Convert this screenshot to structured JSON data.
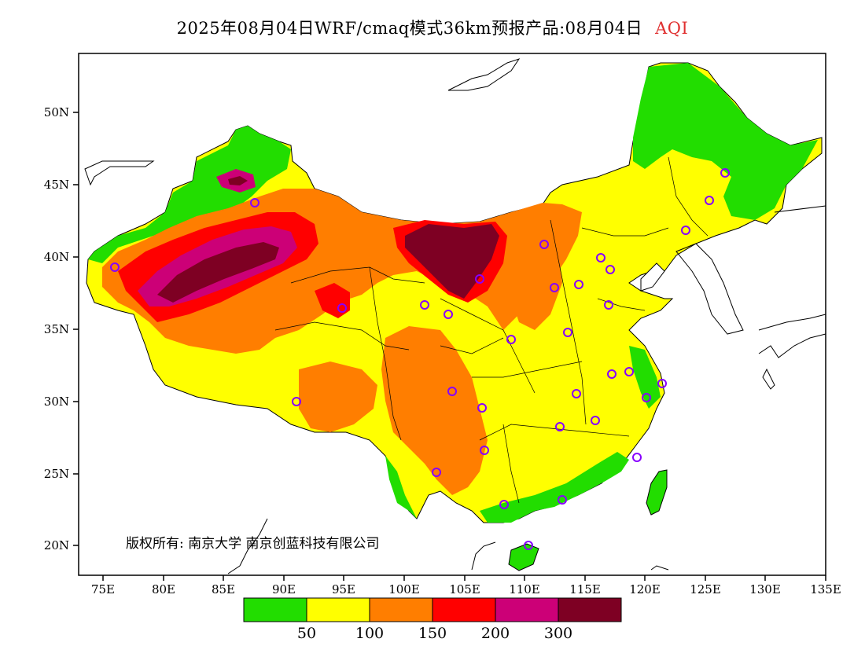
{
  "title": {
    "main": "2025年08月04日WRF/cmaq模式36km预报产品:08月04日",
    "product": "AQI"
  },
  "axes": {
    "lon_ticks": [
      "75E",
      "80E",
      "85E",
      "90E",
      "95E",
      "100E",
      "105E",
      "110E",
      "115E",
      "120E",
      "125E",
      "130E",
      "135E"
    ],
    "lat_ticks": [
      "20N",
      "25N",
      "30N",
      "35N",
      "40N",
      "45N",
      "50N"
    ],
    "lon_range": [
      73,
      135
    ],
    "lat_range": [
      18,
      54
    ]
  },
  "colorbar": {
    "colors": [
      "#22dd00",
      "#ffff00",
      "#ff7e00",
      "#ff0000",
      "#cc0077",
      "#7e0023"
    ],
    "labels": [
      "50",
      "100",
      "150",
      "200",
      "300"
    ]
  },
  "copyright": "版权所有: 南京大学 南京创蓝科技有限公司",
  "colors": {
    "good": "#22dd00",
    "moderate": "#ffff00",
    "usg": "#ff7e00",
    "unhealthy": "#ff0000",
    "very_unhealthy": "#cc0077",
    "hazardous": "#7e0023",
    "station_marker": "#8800ff"
  }
}
